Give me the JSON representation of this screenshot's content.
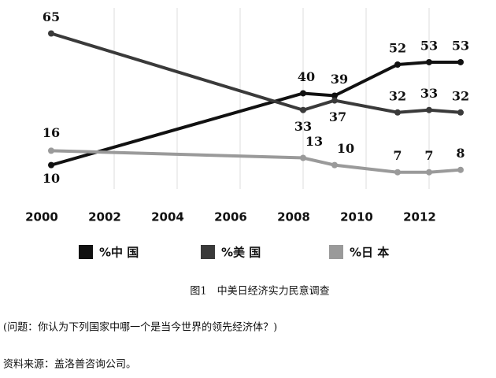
{
  "chart_data": {
    "type": "line",
    "x": [
      2000,
      2008,
      2009,
      2011,
      2012,
      2013
    ],
    "series": [
      {
        "name": "%中 国",
        "color": "#111111",
        "values": [
          10,
          40,
          39,
          52,
          53,
          53
        ]
      },
      {
        "name": "%美 国",
        "color": "#3a3a3a",
        "values": [
          65,
          33,
          37,
          32,
          33,
          32
        ]
      },
      {
        "name": "%日 本",
        "color": "#9a9a9a",
        "values": [
          16,
          13,
          10,
          7,
          7,
          8
        ]
      }
    ],
    "xlim": [
      1998.5,
      2014
    ],
    "ylim": [
      0,
      78
    ],
    "xticks": [
      2000,
      2002,
      2004,
      2006,
      2008,
      2010,
      2012
    ],
    "grid": true,
    "caption": "图1　中美日经济实力民意调查",
    "note": "(问题：你认为下列国家中哪一个是当今世界的领先经济体？)",
    "source": "资料来源：盖洛普咨询公司。"
  }
}
